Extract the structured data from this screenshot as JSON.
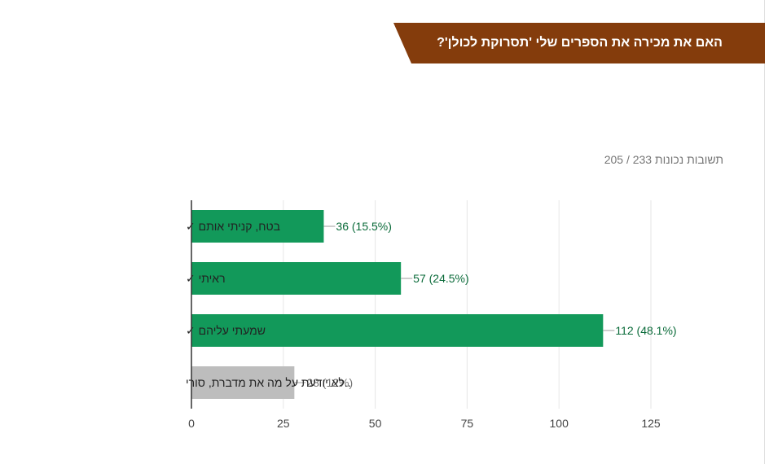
{
  "title": "האם את מכירה את הספרים שלי 'תסרוקת לכולן'?",
  "score": "205 / 233 תשובות נכונות",
  "colors": {
    "banner": "#843c0c",
    "correct_bar": "#12995a",
    "other_bar": "#bdbdbd",
    "correct_label": "#0b6b3a",
    "other_label": "#757575"
  },
  "chart_data": {
    "type": "bar",
    "orientation": "horizontal",
    "categories": [
      "בטח, קניתי אותם ✓",
      "ראיתי ✓",
      "שמעתי עליהם ✓",
      "..לא יודעת על מה את מדברת, סורי"
    ],
    "values": [
      36,
      57,
      112,
      28
    ],
    "labels": [
      "36 (15.5%)",
      "57 (24.5%)",
      "112 (48.1%)",
      "28 (12%)"
    ],
    "correct": [
      true,
      true,
      true,
      false
    ],
    "xlim": [
      0,
      125
    ],
    "xticks": [
      0,
      25,
      50,
      75,
      100,
      125
    ],
    "grid": true
  }
}
